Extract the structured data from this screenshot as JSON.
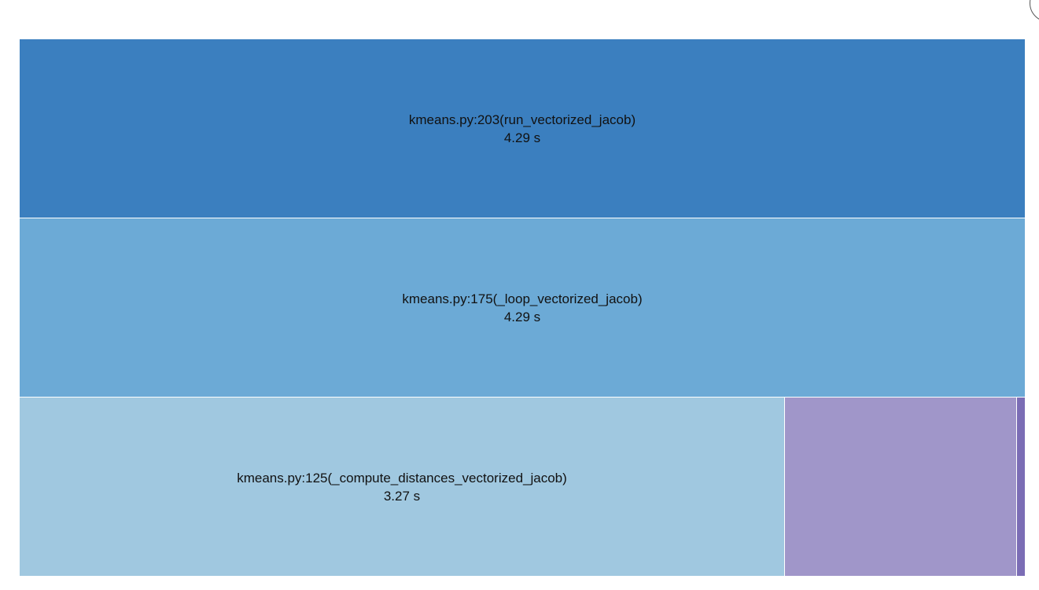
{
  "frames": [
    {
      "name": "kmeans.py:203(run_vectorized_jacob)",
      "time": "4.29 s",
      "color": "#3b7fbf",
      "depth": 0
    },
    {
      "name": "kmeans.py:175(_loop_vectorized_jacob)",
      "time": "4.29 s",
      "color": "#6caad6",
      "depth": 1
    },
    {
      "name": "kmeans.py:125(_compute_distances_vectorized_jacob)",
      "time": "3.27 s",
      "color": "#a0c8e0",
      "depth": 2
    },
    {
      "name": "",
      "time": "",
      "color": "#a096c9",
      "depth": 2
    },
    {
      "name": "",
      "time": "",
      "color": "#7b6db5",
      "depth": 2
    }
  ]
}
